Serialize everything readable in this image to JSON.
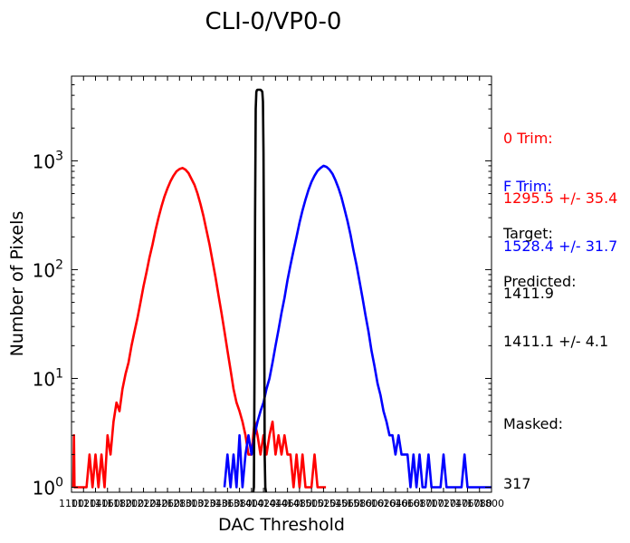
{
  "chart_data": {
    "type": "line",
    "title": "CLI-0/VP0-0",
    "xlabel": "DAC Threshold",
    "ylabel": "Number of Pixels",
    "yscale": "log",
    "xlim": [
      1100,
      1800
    ],
    "ylim": [
      0.9,
      6000
    ],
    "y_ticks": [
      {
        "value": 1,
        "label": "10^0"
      },
      {
        "value": 10,
        "label": "10^1"
      },
      {
        "value": 100,
        "label": "10^2"
      },
      {
        "value": 1000,
        "label": "10^3"
      }
    ],
    "x_ticks": [
      1100,
      1120,
      1140,
      1160,
      1180,
      1200,
      1220,
      1240,
      1260,
      1280,
      1300,
      1320,
      1340,
      1360,
      1380,
      1400,
      1420,
      1440,
      1460,
      1480,
      1500,
      1520,
      1540,
      1560,
      1580,
      1600,
      1620,
      1640,
      1660,
      1680,
      1700,
      1720,
      1740,
      1760,
      1780,
      1800
    ],
    "series": [
      {
        "name": "0 Trim",
        "color": "#ff0000",
        "x": [
          1103,
          1104,
          1105,
          1115,
          1120,
          1125,
          1130,
          1135,
          1140,
          1145,
          1150,
          1155,
          1160,
          1165,
          1170,
          1175,
          1180,
          1185,
          1190,
          1195,
          1200,
          1205,
          1210,
          1215,
          1220,
          1225,
          1230,
          1235,
          1240,
          1245,
          1250,
          1255,
          1260,
          1265,
          1270,
          1275,
          1280,
          1285,
          1290,
          1295,
          1300,
          1305,
          1310,
          1315,
          1320,
          1325,
          1330,
          1335,
          1340,
          1345,
          1350,
          1355,
          1360,
          1365,
          1370,
          1375,
          1380,
          1385,
          1390,
          1395,
          1400,
          1405,
          1410,
          1415,
          1420,
          1425,
          1430,
          1435,
          1440,
          1445,
          1450,
          1455,
          1460,
          1465,
          1470,
          1475,
          1480,
          1485,
          1490,
          1495,
          1500,
          1505,
          1510,
          1515,
          1520,
          1524
        ],
        "y": [
          1,
          3,
          1,
          1,
          1,
          1,
          2,
          1,
          2,
          1,
          2,
          1,
          3,
          2,
          4,
          6,
          5,
          8,
          11,
          14,
          20,
          27,
          36,
          50,
          70,
          95,
          130,
          170,
          230,
          300,
          380,
          470,
          560,
          650,
          730,
          800,
          840,
          860,
          830,
          770,
          680,
          600,
          500,
          400,
          310,
          230,
          170,
          120,
          85,
          58,
          40,
          27,
          18,
          12,
          8,
          6,
          5,
          4,
          3,
          2,
          2,
          4,
          3,
          2,
          3,
          2,
          3,
          4,
          2,
          3,
          2,
          3,
          2,
          2,
          1,
          2,
          1,
          2,
          1,
          1,
          1,
          2,
          1,
          1,
          1,
          1
        ]
      },
      {
        "name": "F Trim",
        "color": "#0000ff",
        "x": [
          1355,
          1360,
          1365,
          1370,
          1375,
          1380,
          1385,
          1390,
          1395,
          1400,
          1405,
          1410,
          1415,
          1420,
          1425,
          1430,
          1435,
          1440,
          1445,
          1450,
          1455,
          1460,
          1465,
          1470,
          1475,
          1480,
          1485,
          1490,
          1495,
          1500,
          1505,
          1510,
          1515,
          1520,
          1525,
          1530,
          1535,
          1540,
          1545,
          1550,
          1555,
          1560,
          1565,
          1570,
          1575,
          1580,
          1585,
          1590,
          1595,
          1600,
          1605,
          1610,
          1615,
          1620,
          1625,
          1630,
          1635,
          1640,
          1645,
          1650,
          1655,
          1660,
          1665,
          1670,
          1675,
          1680,
          1685,
          1690,
          1695,
          1700,
          1705,
          1710,
          1715,
          1720,
          1725,
          1730,
          1735,
          1740,
          1745,
          1750,
          1755,
          1760,
          1765,
          1770,
          1775,
          1780,
          1785,
          1790,
          1795,
          1800
        ],
        "y": [
          1,
          2,
          1,
          2,
          1,
          3,
          1,
          2,
          3,
          2,
          3,
          4,
          5,
          6,
          8,
          10,
          14,
          20,
          28,
          40,
          55,
          80,
          110,
          150,
          200,
          270,
          350,
          440,
          540,
          640,
          730,
          810,
          860,
          900,
          880,
          830,
          760,
          660,
          560,
          460,
          360,
          280,
          210,
          150,
          110,
          78,
          55,
          38,
          27,
          18,
          13,
          9,
          7,
          5,
          4,
          3,
          3,
          2,
          3,
          2,
          2,
          2,
          1,
          2,
          1,
          2,
          1,
          1,
          2,
          1,
          1,
          1,
          1,
          2,
          1,
          1,
          1,
          1,
          1,
          1,
          2,
          1,
          1,
          1,
          1,
          1,
          1,
          1,
          1,
          1
        ]
      },
      {
        "name": "",
        "color": "#000000",
        "x": [
          1403,
          1404,
          1405,
          1406,
          1407,
          1408,
          1409,
          1410,
          1411,
          1412,
          1413,
          1414,
          1415,
          1416,
          1417,
          1418,
          1419,
          1420,
          1421,
          1422,
          1423,
          1424,
          1425
        ],
        "y": [
          0.9,
          1,
          12,
          300,
          3000,
          4300,
          4450,
          4500,
          4500,
          4500,
          4500,
          4500,
          4500,
          4450,
          4400,
          4300,
          3500,
          1200,
          80,
          2,
          1,
          0.9,
          0.9
        ]
      }
    ]
  },
  "annotations": [
    {
      "label": "0 Trim:",
      "value": "1295.5 +/- 35.4",
      "color": "#ff0000"
    },
    {
      "label": "F Trim:",
      "value": "1528.4 +/- 31.7",
      "color": "#0000ff"
    },
    {
      "label": "Target:",
      "value": "1411.9",
      "color": "#000000"
    },
    {
      "label": "Predicted:",
      "value": "1411.1 +/- 4.1",
      "color": "#000000"
    },
    {
      "label": "Masked:",
      "value": "317",
      "color": "#000000"
    }
  ]
}
